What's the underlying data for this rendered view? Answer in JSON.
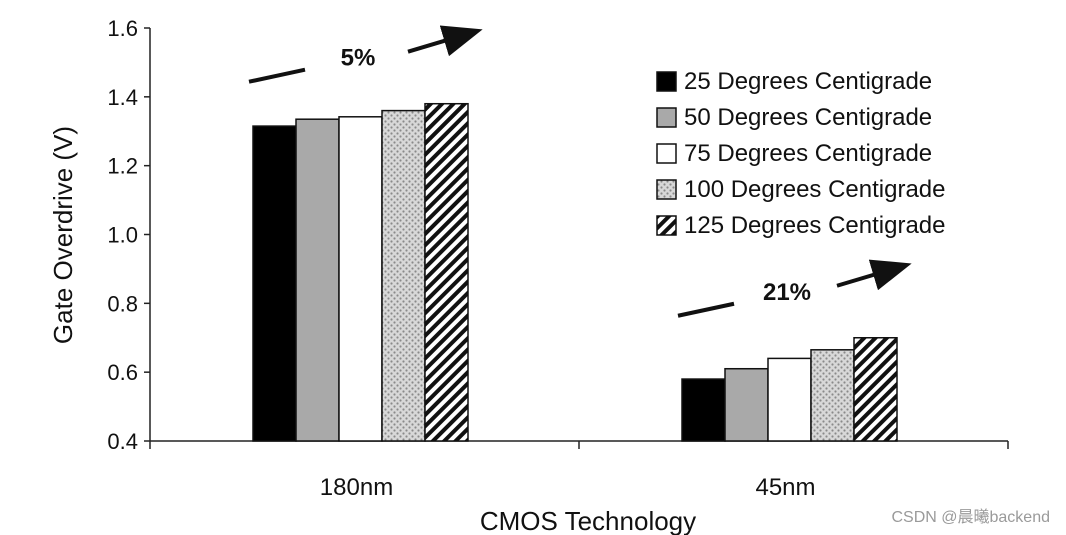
{
  "chart_data": {
    "type": "bar",
    "categories": [
      "180nm",
      "45nm"
    ],
    "series": [
      {
        "name": "25 Degrees Centigrade",
        "values": [
          1.315,
          0.58
        ],
        "fill": "#000000",
        "pattern": "solid-black"
      },
      {
        "name": "50 Degrees Centigrade",
        "values": [
          1.335,
          0.61
        ],
        "fill": "#a9a9a9",
        "pattern": "solid-gray"
      },
      {
        "name": "75 Degrees Centigrade",
        "values": [
          1.342,
          0.64
        ],
        "fill": "#ffffff",
        "pattern": "white"
      },
      {
        "name": "100 Degrees Centigrade",
        "values": [
          1.36,
          0.665
        ],
        "fill": "#cfcfcf",
        "pattern": "dotted"
      },
      {
        "name": "125 Degrees Centigrade",
        "values": [
          1.38,
          0.7
        ],
        "fill": "#000000",
        "pattern": "diagonal-hatch"
      }
    ],
    "xlabel": "CMOS Technology",
    "ylabel": "Gate Overdrive (V)",
    "ylim": [
      0.4,
      1.6
    ],
    "yticks": [
      "0.4",
      "0.6",
      "0.8",
      "1.0",
      "1.2",
      "1.4",
      "1.6"
    ],
    "grid": false,
    "legend_position": "right",
    "annotations": [
      {
        "category": "180nm",
        "text": "5%"
      },
      {
        "category": "45nm",
        "text": "21%"
      }
    ]
  },
  "watermark": "CSDN @晨曦backend"
}
